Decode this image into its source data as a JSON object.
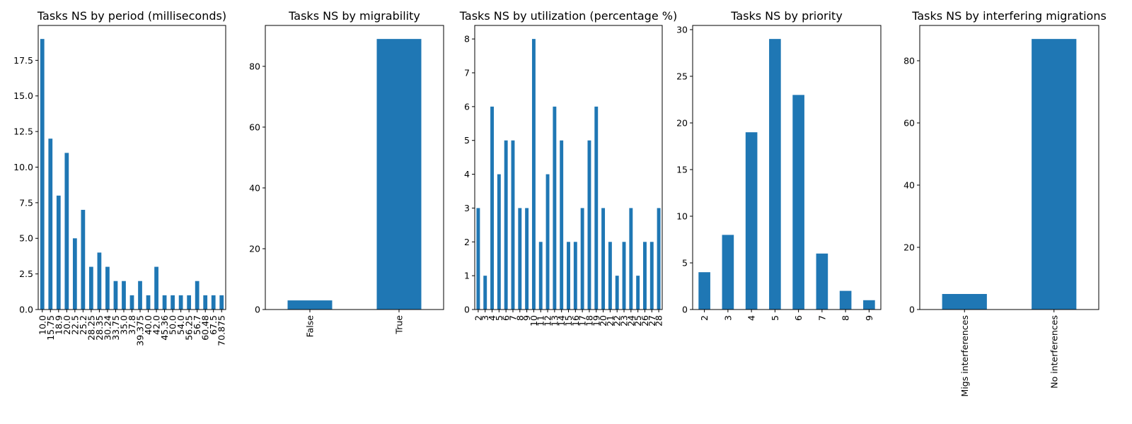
{
  "chart_data": [
    {
      "type": "bar",
      "title": "Tasks NS by period (milliseconds)",
      "categories": [
        "10.0",
        "15.75",
        "18.9",
        "20.0",
        "22.5",
        "25.2",
        "28.25",
        "28.35",
        "30.24",
        "33.75",
        "35.0",
        "37.8",
        "39.375",
        "40.0",
        "42.0",
        "45.36",
        "50.0",
        "54.0",
        "56.25",
        "56.7",
        "60.48",
        "67.5",
        "70.875"
      ],
      "values": [
        19,
        12,
        8,
        11,
        5,
        7,
        3,
        4,
        3,
        2,
        2,
        1,
        2,
        1,
        3,
        1,
        1,
        1,
        1,
        2,
        1,
        1,
        1
      ],
      "ylim": [
        0,
        19.95
      ],
      "yticks": [
        0.0,
        2.5,
        5.0,
        7.5,
        10.0,
        12.5,
        15.0,
        17.5
      ],
      "ytick_labels": [
        "0.0",
        "2.5",
        "5.0",
        "7.5",
        "10.0",
        "12.5",
        "15.0",
        "17.5"
      ],
      "color": "#1f77b4"
    },
    {
      "type": "bar",
      "title": "Tasks NS by migrability",
      "categories": [
        "False",
        "True"
      ],
      "values": [
        3,
        89
      ],
      "ylim": [
        0,
        93.45
      ],
      "yticks": [
        0,
        20,
        40,
        60,
        80
      ],
      "ytick_labels": [
        "0",
        "20",
        "40",
        "60",
        "80"
      ],
      "color": "#1f77b4"
    },
    {
      "type": "bar",
      "title": "Tasks NS by utilization (percentage %)",
      "categories": [
        "2",
        "3",
        "4",
        "5",
        "6",
        "7",
        "8",
        "9",
        "10",
        "11",
        "12",
        "13",
        "14",
        "15",
        "16",
        "17",
        "18",
        "19",
        "20",
        "21",
        "22",
        "23",
        "24",
        "25",
        "26",
        "27",
        "28"
      ],
      "values": [
        3,
        1,
        6,
        4,
        5,
        5,
        3,
        3,
        8,
        2,
        4,
        6,
        5,
        2,
        2,
        3,
        5,
        6,
        3,
        2,
        1,
        2,
        3,
        1,
        2,
        2,
        3
      ],
      "ylim": [
        0,
        8.4
      ],
      "yticks": [
        0,
        1,
        2,
        3,
        4,
        5,
        6,
        7,
        8
      ],
      "ytick_labels": [
        "0",
        "1",
        "2",
        "3",
        "4",
        "5",
        "6",
        "7",
        "8"
      ],
      "color": "#1f77b4"
    },
    {
      "type": "bar",
      "title": "Tasks NS by priority",
      "categories": [
        "2",
        "3",
        "4",
        "5",
        "6",
        "7",
        "8",
        "9"
      ],
      "values": [
        4,
        8,
        19,
        29,
        23,
        6,
        2,
        1
      ],
      "ylim": [
        0,
        30.45
      ],
      "yticks": [
        0,
        5,
        10,
        15,
        20,
        25,
        30
      ],
      "ytick_labels": [
        "0",
        "5",
        "10",
        "15",
        "20",
        "25",
        "30"
      ],
      "color": "#1f77b4"
    },
    {
      "type": "bar",
      "title": "Tasks NS by interfering migrations",
      "categories": [
        "Migs interferences",
        "No interferences"
      ],
      "values": [
        5,
        87
      ],
      "ylim": [
        0,
        91.35
      ],
      "yticks": [
        0,
        20,
        40,
        60,
        80
      ],
      "ytick_labels": [
        "0",
        "20",
        "40",
        "60",
        "80"
      ],
      "color": "#1f77b4"
    }
  ]
}
